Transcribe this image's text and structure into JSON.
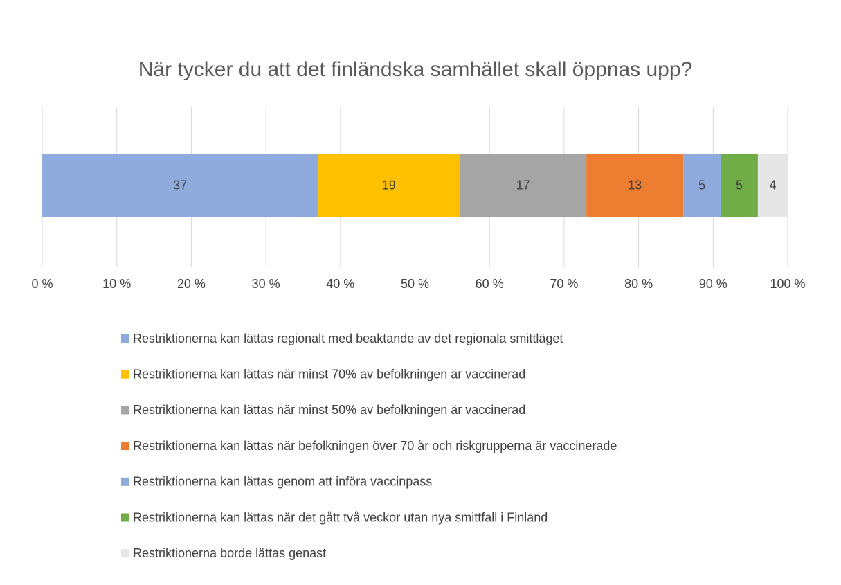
{
  "chart_data": {
    "type": "stacked-bar-horizontal",
    "title": "När tycker du att det finländska samhället skall öppnas upp?",
    "series": [
      {
        "name": "Restriktionerna kan lättas regionalt med beaktande av det regionala smittläget",
        "color": "#8faadc",
        "values": [
          37
        ]
      },
      {
        "name": "Restriktionerna kan lättas när minst 70% av befolkningen är vaccinerad",
        "color": "#ffc000",
        "values": [
          19
        ]
      },
      {
        "name": "Restriktionerna kan lättas när minst 50% av befolkningen är vaccinerad",
        "color": "#a5a5a5",
        "values": [
          17
        ]
      },
      {
        "name": "Restriktionerna kan lättas när befolkningen över 70 år och riskgrupperna är vaccinerade",
        "color": "#ed7d31",
        "values": [
          13
        ]
      },
      {
        "name": "Restriktionerna kan lättas genom att införa vaccinpass",
        "color": "#8faadc",
        "values": [
          5
        ]
      },
      {
        "name": "Restriktionerna kan lättas när det gått två veckor utan nya smittfall i Finland",
        "color": "#70ad47",
        "values": [
          5
        ]
      },
      {
        "name": "Restriktionerna borde lättas genast",
        "color": "#e7e6e6",
        "values": [
          4
        ]
      }
    ],
    "xlim": [
      0,
      100
    ],
    "xticks": [
      {
        "value": 0,
        "label": "0 %"
      },
      {
        "value": 10,
        "label": "10 %"
      },
      {
        "value": 20,
        "label": "20 %"
      },
      {
        "value": 30,
        "label": "30 %"
      },
      {
        "value": 40,
        "label": "40 %"
      },
      {
        "value": 50,
        "label": "50 %"
      },
      {
        "value": 60,
        "label": "60 %"
      },
      {
        "value": 70,
        "label": "70 %"
      },
      {
        "value": 80,
        "label": "80 %"
      },
      {
        "value": 90,
        "label": "90 %"
      },
      {
        "value": 100,
        "label": "100 %"
      }
    ],
    "grid": true,
    "legend": "bottom"
  }
}
